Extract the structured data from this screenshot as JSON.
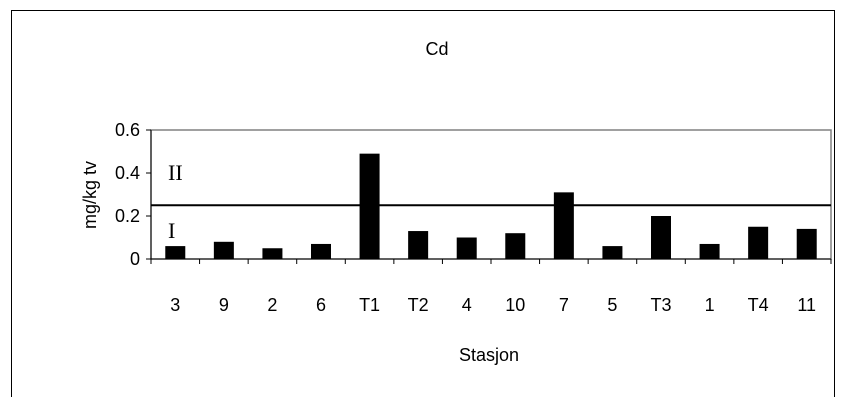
{
  "chart_data": {
    "type": "bar",
    "title": "Cd",
    "xlabel": "Stasjon",
    "ylabel": "mg/kg tv",
    "categories": [
      "3",
      "9",
      "2",
      "6",
      "T1",
      "T2",
      "4",
      "10",
      "7",
      "5",
      "T3",
      "1",
      "T4",
      "11"
    ],
    "values": [
      0.06,
      0.08,
      0.05,
      0.07,
      0.49,
      0.13,
      0.1,
      0.12,
      0.31,
      0.06,
      0.2,
      0.07,
      0.15,
      0.14
    ],
    "ylim": [
      0,
      0.6
    ],
    "yticks": [
      "0",
      "0.2",
      "0.4",
      "0.6"
    ],
    "ytick_values": [
      0,
      0.2,
      0.4,
      0.6
    ],
    "threshold": 0.25,
    "class_labels": {
      "lower": "I",
      "upper": "II"
    },
    "grid": false,
    "bar_color": "#000000",
    "plot_border_color": "#808080"
  }
}
